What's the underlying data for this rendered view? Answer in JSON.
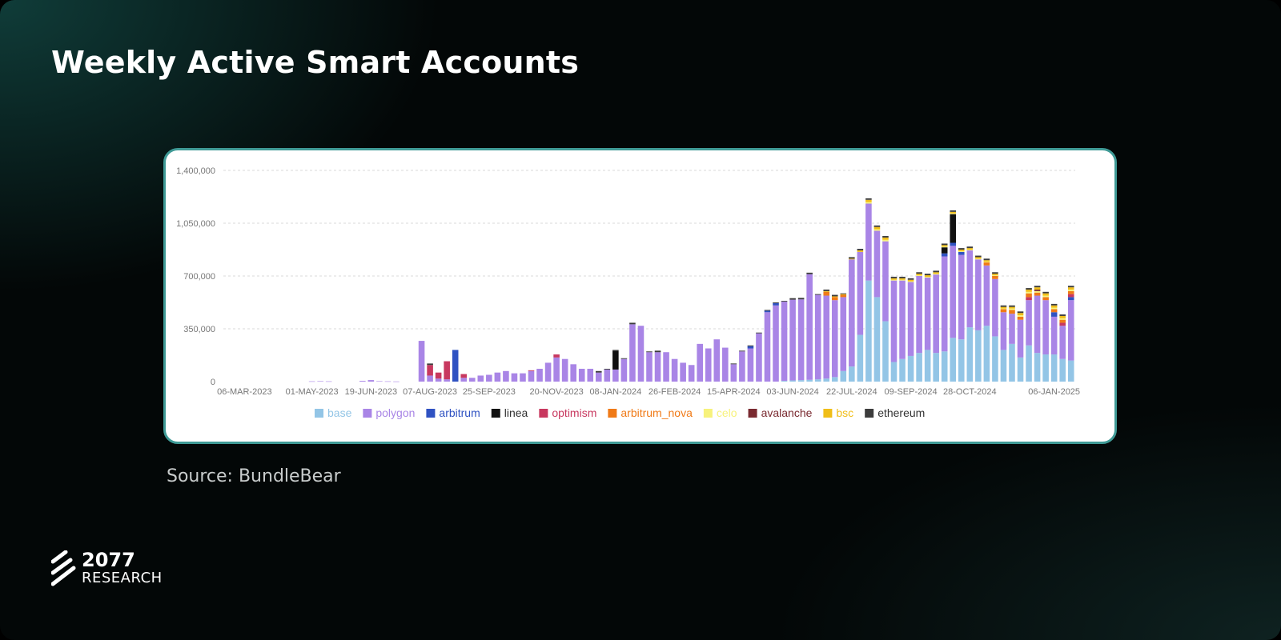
{
  "title": "Weekly Active Smart Accounts",
  "source": "Source: BundleBear",
  "logo": {
    "number": "2077",
    "text": "RESEARCH"
  },
  "colors": {
    "background": "#030707",
    "card_border": "#3f9a96",
    "title": "#ffffff"
  },
  "chart_data": {
    "type": "bar",
    "stacked": true,
    "title": "",
    "xlabel": "",
    "ylabel": "",
    "ylim": [
      0,
      1400000
    ],
    "y_ticks": [
      0,
      350000,
      700000,
      1050000,
      1400000
    ],
    "y_tick_labels": [
      "0",
      "350,000",
      "700,000",
      "1,050,000",
      "1,400,000"
    ],
    "grid": true,
    "legend_position": "bottom",
    "x_tick_labels": [
      {
        "label": "06-MAR-2023",
        "index": 2
      },
      {
        "label": "01-MAY-2023",
        "index": 10
      },
      {
        "label": "19-JUN-2023",
        "index": 17
      },
      {
        "label": "07-AUG-2023",
        "index": 24
      },
      {
        "label": "25-SEP-2023",
        "index": 31
      },
      {
        "label": "20-NOV-2023",
        "index": 39
      },
      {
        "label": "08-JAN-2024",
        "index": 46
      },
      {
        "label": "26-FEB-2024",
        "index": 53
      },
      {
        "label": "15-APR-2024",
        "index": 60
      },
      {
        "label": "03-JUN-2024",
        "index": 67
      },
      {
        "label": "22-JUL-2024",
        "index": 74
      },
      {
        "label": "09-SEP-2024",
        "index": 81
      },
      {
        "label": "28-OCT-2024",
        "index": 88
      },
      {
        "label": "06-JAN-2025",
        "index": 98
      }
    ],
    "series": [
      {
        "name": "base",
        "color": "#93c5e6",
        "values": [
          0,
          0,
          0,
          0,
          0,
          0,
          0,
          0,
          0,
          0,
          0,
          0,
          0,
          0,
          0,
          0,
          0,
          0,
          0,
          0,
          0,
          0,
          0,
          0,
          0,
          0,
          0,
          0,
          0,
          0,
          0,
          0,
          0,
          0,
          0,
          0,
          0,
          0,
          0,
          0,
          0,
          0,
          0,
          0,
          0,
          0,
          0,
          0,
          0,
          0,
          0,
          0,
          0,
          0,
          0,
          0,
          0,
          0,
          0,
          0,
          0,
          0,
          0,
          0,
          0,
          0,
          5000,
          8000,
          10000,
          12000,
          15000,
          20000,
          30000,
          70000,
          100000,
          310000,
          670000,
          560000,
          400000,
          130000,
          150000,
          170000,
          190000,
          210000,
          190000,
          200000,
          290000,
          280000,
          360000,
          340000,
          370000,
          300000,
          210000,
          250000,
          160000,
          240000,
          190000,
          180000,
          180000,
          150000,
          140000
        ]
      },
      {
        "name": "polygon",
        "color": "#a985e6",
        "values": [
          0,
          0,
          0,
          0,
          0,
          0,
          0,
          0,
          0,
          0,
          2000,
          3000,
          2000,
          0,
          0,
          0,
          5000,
          10000,
          3000,
          2000,
          1000,
          0,
          0,
          270000,
          40000,
          20000,
          15000,
          0,
          25000,
          25000,
          40000,
          45000,
          60000,
          70000,
          55000,
          55000,
          70000,
          85000,
          125000,
          160000,
          150000,
          115000,
          85000,
          85000,
          60000,
          80000,
          80000,
          150000,
          380000,
          370000,
          195000,
          195000,
          195000,
          150000,
          125000,
          110000,
          250000,
          220000,
          280000,
          225000,
          115000,
          200000,
          220000,
          320000,
          460000,
          505000,
          525000,
          535000,
          535000,
          700000,
          560000,
          550000,
          510000,
          490000,
          710000,
          550000,
          510000,
          440000,
          530000,
          540000,
          520000,
          490000,
          510000,
          480000,
          520000,
          630000,
          610000,
          560000,
          510000,
          470000,
          400000,
          380000,
          250000,
          200000,
          250000,
          300000,
          380000,
          360000,
          250000,
          220000,
          400000,
          250000
        ]
      },
      {
        "name": "arbitrum",
        "color": "#2f52c2",
        "values": [
          0,
          0,
          0,
          0,
          0,
          0,
          0,
          0,
          0,
          0,
          0,
          0,
          0,
          0,
          0,
          0,
          0,
          0,
          0,
          0,
          0,
          0,
          0,
          0,
          0,
          0,
          0,
          210000,
          0,
          0,
          0,
          0,
          0,
          0,
          0,
          0,
          0,
          0,
          0,
          0,
          0,
          0,
          0,
          0,
          0,
          0,
          0,
          0,
          0,
          0,
          0,
          0,
          0,
          0,
          0,
          0,
          0,
          0,
          0,
          0,
          0,
          0,
          15000,
          0,
          10000,
          15000,
          0,
          0,
          0,
          0,
          0,
          0,
          0,
          0,
          0,
          0,
          0,
          0,
          0,
          0,
          0,
          0,
          0,
          0,
          0,
          20000,
          20000,
          20000,
          0,
          0,
          0,
          0,
          0,
          0,
          0,
          0,
          0,
          0,
          30000,
          0,
          20000,
          30000
        ]
      },
      {
        "name": "linea",
        "color": "#111111",
        "values": [
          0,
          0,
          0,
          0,
          0,
          0,
          0,
          0,
          0,
          0,
          0,
          0,
          0,
          0,
          0,
          0,
          0,
          0,
          0,
          0,
          0,
          0,
          0,
          0,
          0,
          0,
          0,
          0,
          0,
          0,
          0,
          0,
          0,
          0,
          0,
          0,
          0,
          0,
          0,
          0,
          0,
          0,
          0,
          0,
          0,
          0,
          125000,
          0,
          0,
          0,
          0,
          0,
          0,
          0,
          0,
          0,
          0,
          0,
          0,
          0,
          0,
          0,
          0,
          0,
          0,
          0,
          0,
          0,
          0,
          0,
          0,
          0,
          0,
          0,
          0,
          0,
          0,
          0,
          0,
          0,
          0,
          0,
          0,
          0,
          0,
          40000,
          190000,
          0,
          0,
          0,
          0,
          0,
          0,
          0,
          0,
          0,
          0,
          0,
          0,
          0,
          0,
          0
        ]
      },
      {
        "name": "optimism",
        "color": "#c8385f",
        "values": [
          0,
          0,
          0,
          0,
          0,
          0,
          0,
          0,
          0,
          0,
          0,
          0,
          0,
          0,
          0,
          0,
          0,
          0,
          0,
          0,
          0,
          0,
          0,
          0,
          70000,
          40000,
          120000,
          0,
          25000,
          0,
          0,
          0,
          0,
          0,
          0,
          0,
          5000,
          0,
          0,
          20000,
          0,
          0,
          0,
          0,
          0,
          0,
          0,
          0,
          0,
          0,
          0,
          0,
          0,
          0,
          0,
          0,
          0,
          0,
          0,
          0,
          0,
          0,
          0,
          0,
          0,
          0,
          0,
          0,
          0,
          0,
          0,
          0,
          0,
          0,
          0,
          0,
          0,
          0,
          0,
          0,
          0,
          0,
          0,
          0,
          0,
          0,
          0,
          0,
          0,
          0,
          0,
          0,
          0,
          0,
          0,
          20000,
          0,
          0,
          0,
          20000,
          20000,
          0
        ]
      },
      {
        "name": "arbitrum_nova",
        "color": "#f07a17",
        "values": [
          0,
          0,
          0,
          0,
          0,
          0,
          0,
          0,
          0,
          0,
          0,
          0,
          0,
          0,
          0,
          0,
          0,
          0,
          0,
          0,
          0,
          0,
          0,
          0,
          0,
          0,
          0,
          0,
          0,
          0,
          0,
          0,
          0,
          0,
          0,
          0,
          0,
          0,
          0,
          0,
          0,
          0,
          0,
          0,
          0,
          0,
          0,
          0,
          0,
          0,
          0,
          0,
          0,
          0,
          0,
          0,
          0,
          0,
          0,
          0,
          0,
          0,
          0,
          0,
          0,
          0,
          0,
          0,
          0,
          0,
          0,
          25000,
          20000,
          15000,
          0,
          0,
          0,
          0,
          0,
          0,
          0,
          0,
          0,
          0,
          0,
          0,
          0,
          0,
          0,
          0,
          20000,
          20000,
          20000,
          25000,
          20000,
          25000,
          20000,
          20000,
          20000,
          20000,
          20000,
          20000
        ]
      },
      {
        "name": "celo",
        "color": "#f7f27c",
        "values": [
          0,
          0,
          0,
          0,
          0,
          0,
          0,
          0,
          0,
          0,
          0,
          0,
          0,
          0,
          0,
          0,
          0,
          0,
          0,
          0,
          0,
          0,
          0,
          0,
          0,
          0,
          0,
          0,
          0,
          0,
          0,
          0,
          0,
          0,
          0,
          0,
          0,
          0,
          0,
          0,
          0,
          0,
          0,
          0,
          0,
          0,
          0,
          0,
          0,
          0,
          0,
          0,
          0,
          0,
          0,
          0,
          0,
          0,
          0,
          0,
          0,
          0,
          0,
          0,
          0,
          0,
          0,
          0,
          0,
          0,
          0,
          0,
          0,
          0,
          0,
          0,
          10000,
          10000,
          10000,
          5000,
          5000,
          5000,
          5000,
          5000,
          5000,
          5000,
          5000,
          5000,
          5000,
          5000,
          5000,
          5000,
          5000,
          10000,
          10000,
          10000,
          10000,
          10000,
          10000,
          10000,
          10000,
          10000
        ]
      },
      {
        "name": "avalanche",
        "color": "#7a2a30",
        "values": [
          0,
          0,
          0,
          0,
          0,
          0,
          0,
          0,
          0,
          0,
          0,
          0,
          0,
          0,
          0,
          0,
          0,
          0,
          0,
          0,
          0,
          0,
          0,
          0,
          0,
          0,
          0,
          0,
          0,
          0,
          0,
          0,
          0,
          0,
          0,
          0,
          0,
          0,
          0,
          0,
          0,
          0,
          0,
          0,
          0,
          0,
          0,
          0,
          0,
          0,
          0,
          0,
          0,
          0,
          0,
          0,
          0,
          0,
          0,
          0,
          0,
          0,
          0,
          0,
          0,
          0,
          0,
          0,
          0,
          0,
          0,
          0,
          0,
          0,
          0,
          0,
          0,
          0,
          0,
          0,
          0,
          0,
          0,
          0,
          0,
          0,
          0,
          0,
          0,
          0,
          0,
          0,
          0,
          0,
          0,
          0,
          10000,
          0,
          0,
          0,
          0,
          0
        ]
      },
      {
        "name": "bsc",
        "color": "#f0be18",
        "values": [
          0,
          0,
          0,
          0,
          0,
          0,
          0,
          0,
          0,
          0,
          0,
          0,
          0,
          0,
          0,
          0,
          0,
          0,
          0,
          0,
          0,
          0,
          0,
          0,
          0,
          0,
          0,
          0,
          0,
          0,
          0,
          0,
          0,
          0,
          0,
          0,
          0,
          0,
          0,
          0,
          0,
          0,
          0,
          0,
          0,
          0,
          0,
          0,
          0,
          0,
          0,
          0,
          0,
          0,
          0,
          0,
          0,
          0,
          0,
          0,
          0,
          0,
          0,
          0,
          0,
          0,
          0,
          0,
          0,
          0,
          0,
          5000,
          5000,
          5000,
          5000,
          10000,
          15000,
          15000,
          15000,
          10000,
          10000,
          10000,
          10000,
          10000,
          10000,
          10000,
          10000,
          10000,
          10000,
          10000,
          10000,
          10000,
          10000,
          10000,
          15000,
          15000,
          15000,
          15000,
          15000,
          15000,
          15000,
          10000
        ]
      },
      {
        "name": "ethereum",
        "color": "#3c3c3c",
        "values": [
          0,
          0,
          0,
          0,
          0,
          0,
          0,
          0,
          0,
          0,
          0,
          0,
          0,
          0,
          0,
          0,
          0,
          0,
          0,
          0,
          0,
          0,
          0,
          0,
          10000,
          0,
          0,
          0,
          0,
          0,
          0,
          0,
          0,
          0,
          0,
          0,
          0,
          0,
          0,
          0,
          0,
          0,
          0,
          0,
          10000,
          5000,
          5000,
          5000,
          10000,
          0,
          5000,
          10000,
          0,
          0,
          0,
          0,
          0,
          0,
          0,
          0,
          5000,
          5000,
          5000,
          5000,
          5000,
          5000,
          5000,
          10000,
          10000,
          10000,
          5000,
          10000,
          10000,
          5000,
          10000,
          10000,
          10000,
          10000,
          10000,
          10000,
          10000,
          10000,
          10000,
          10000,
          10000,
          10000,
          10000,
          10000,
          10000,
          10000,
          10000,
          10000,
          10000,
          10000,
          10000,
          10000,
          10000,
          10000,
          10000,
          10000,
          10000,
          10000
        ]
      }
    ]
  }
}
